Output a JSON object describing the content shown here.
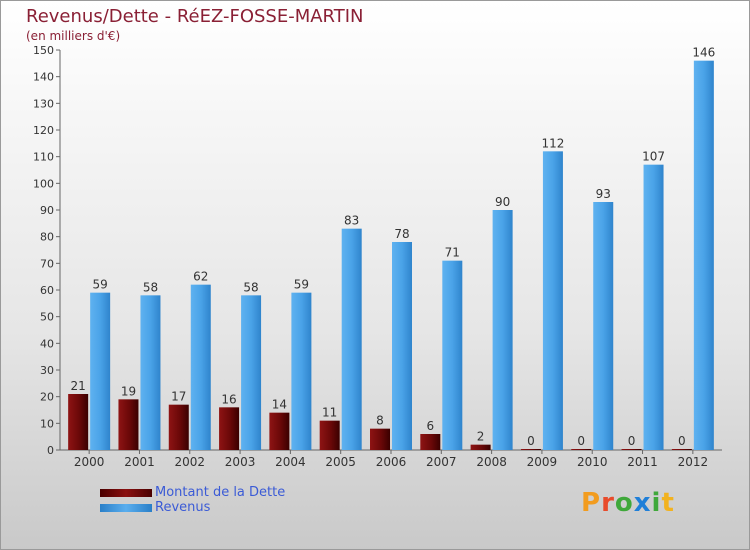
{
  "chart_data": {
    "type": "bar",
    "title": "Revenus/Dette - RéEZ-FOSSE-MARTIN",
    "subtitle": "(en milliers d'€)",
    "categories": [
      "2000",
      "2001",
      "2002",
      "2003",
      "2004",
      "2005",
      "2006",
      "2007",
      "2008",
      "2009",
      "2010",
      "2011",
      "2012"
    ],
    "series": [
      {
        "name": "Montant de la Dette",
        "color": "#7a1010",
        "values": [
          21,
          19,
          17,
          16,
          14,
          11,
          8,
          6,
          2,
          0,
          0,
          0,
          0
        ]
      },
      {
        "name": "Revenus",
        "color": "#4aa3e8",
        "values": [
          59,
          58,
          62,
          58,
          59,
          83,
          78,
          71,
          90,
          112,
          93,
          107,
          146
        ]
      }
    ],
    "ylim": [
      0,
      150
    ],
    "yticks": [
      0,
      10,
      20,
      30,
      40,
      50,
      60,
      70,
      80,
      90,
      100,
      110,
      120,
      130,
      140,
      150
    ],
    "grid": false,
    "legend_position": "bottom-left"
  },
  "brand": {
    "letters": [
      "P",
      "r",
      "o",
      "x",
      "i",
      "t"
    ],
    "colors": [
      "#f29c1f",
      "#e84b2b",
      "#3fa83a",
      "#1f7fd8",
      "#3fa83a",
      "#f2b21f"
    ]
  }
}
